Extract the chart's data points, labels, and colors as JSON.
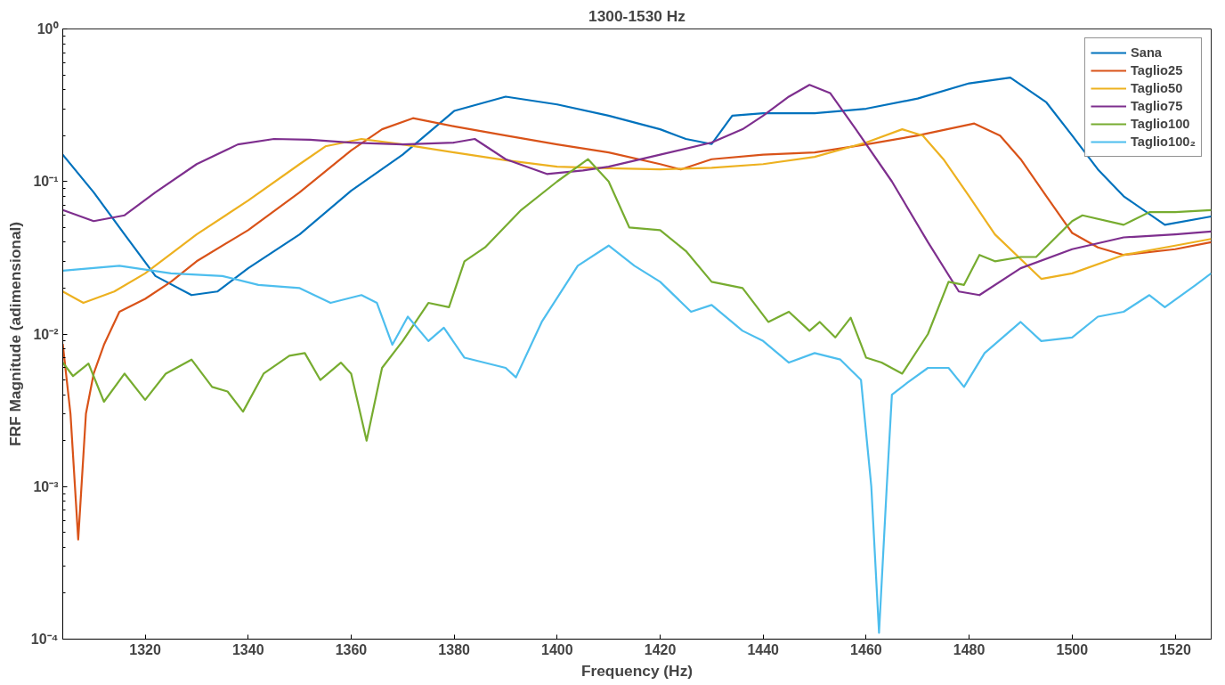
{
  "chart_data": {
    "type": "line",
    "title": "1300-1530 Hz",
    "xlabel": "Frequency (Hz)",
    "ylabel": "FRF Magnitude (adimensional)",
    "log": "y",
    "grid": false,
    "legend": "top right",
    "line_style": "solid",
    "marker": "none",
    "xlim": [
      1304,
      1527
    ],
    "xticks": [
      1320,
      1340,
      1360,
      1380,
      1400,
      1420,
      1440,
      1460,
      1480,
      1500,
      1520
    ],
    "ylim": [
      0.0001,
      1
    ],
    "yticks": [
      {
        "value": 0.0001,
        "label": "10⁻⁴"
      },
      {
        "value": 0.001,
        "label": "10⁻³"
      },
      {
        "value": 0.01,
        "label": "10⁻²"
      },
      {
        "value": 0.1,
        "label": "10⁻¹"
      },
      {
        "value": 1,
        "label": "10⁰"
      }
    ],
    "series": [
      {
        "name": "Sana",
        "color": "#0072bd",
        "x": [
          1304,
          1310,
          1316,
          1322,
          1329,
          1334,
          1340,
          1350,
          1360,
          1370,
          1380,
          1390,
          1400,
          1410,
          1420,
          1425,
          1430,
          1434,
          1440,
          1450,
          1460,
          1470,
          1480,
          1488,
          1495,
          1500,
          1505,
          1510,
          1518,
          1527
        ],
        "values": [
          0.15,
          0.085,
          0.045,
          0.024,
          0.018,
          0.019,
          0.027,
          0.045,
          0.087,
          0.15,
          0.29,
          0.36,
          0.32,
          0.27,
          0.22,
          0.19,
          0.176,
          0.27,
          0.28,
          0.28,
          0.3,
          0.35,
          0.44,
          0.48,
          0.33,
          0.2,
          0.12,
          0.08,
          0.052,
          0.059
        ]
      },
      {
        "name": "Taglio25",
        "color": "#d95319",
        "x": [
          1304,
          1305.5,
          1307,
          1308.5,
          1310,
          1312,
          1315,
          1320,
          1325,
          1330,
          1340,
          1350,
          1360,
          1366,
          1372,
          1380,
          1390,
          1400,
          1410,
          1420,
          1424,
          1430,
          1440,
          1450,
          1460,
          1470,
          1481,
          1486,
          1490,
          1495,
          1500,
          1505,
          1510,
          1520,
          1527
        ],
        "values": [
          0.0086,
          0.003,
          0.00045,
          0.003,
          0.0055,
          0.0085,
          0.014,
          0.017,
          0.022,
          0.03,
          0.048,
          0.085,
          0.16,
          0.22,
          0.26,
          0.23,
          0.2,
          0.175,
          0.155,
          0.13,
          0.12,
          0.14,
          0.15,
          0.155,
          0.175,
          0.2,
          0.24,
          0.2,
          0.14,
          0.08,
          0.046,
          0.037,
          0.033,
          0.036,
          0.04
        ]
      },
      {
        "name": "Taglio50",
        "color": "#edb120",
        "x": [
          1304,
          1308,
          1314,
          1320,
          1330,
          1340,
          1350,
          1355,
          1362,
          1370,
          1380,
          1390,
          1400,
          1410,
          1420,
          1430,
          1440,
          1450,
          1460,
          1467,
          1471,
          1475,
          1480,
          1485,
          1494,
          1500,
          1510,
          1520,
          1527
        ],
        "values": [
          0.019,
          0.016,
          0.019,
          0.025,
          0.045,
          0.075,
          0.13,
          0.17,
          0.19,
          0.175,
          0.155,
          0.138,
          0.125,
          0.122,
          0.12,
          0.123,
          0.13,
          0.145,
          0.18,
          0.22,
          0.2,
          0.14,
          0.08,
          0.045,
          0.023,
          0.025,
          0.033,
          0.038,
          0.042
        ]
      },
      {
        "name": "Taglio75",
        "color": "#7e2f8e",
        "x": [
          1304,
          1310,
          1316,
          1322,
          1330,
          1338,
          1345,
          1352,
          1360,
          1370,
          1380,
          1384,
          1390,
          1398,
          1405,
          1410,
          1420,
          1430,
          1436,
          1440,
          1445,
          1449,
          1453,
          1458,
          1465,
          1472,
          1478,
          1482,
          1490,
          1500,
          1510,
          1520,
          1527
        ],
        "values": [
          0.065,
          0.055,
          0.06,
          0.085,
          0.13,
          0.175,
          0.19,
          0.188,
          0.18,
          0.175,
          0.18,
          0.19,
          0.14,
          0.112,
          0.118,
          0.125,
          0.15,
          0.18,
          0.22,
          0.27,
          0.36,
          0.43,
          0.38,
          0.22,
          0.1,
          0.04,
          0.019,
          0.018,
          0.027,
          0.036,
          0.043,
          0.045,
          0.047
        ]
      },
      {
        "name": "Taglio100",
        "color": "#77ac30",
        "x": [
          1304,
          1306,
          1309,
          1312,
          1316,
          1320,
          1324,
          1329,
          1333,
          1336,
          1339,
          1343,
          1348,
          1351,
          1354,
          1358,
          1360,
          1363,
          1366,
          1370,
          1375,
          1379,
          1382,
          1386,
          1393,
          1400,
          1406,
          1410,
          1414,
          1420,
          1425,
          1430,
          1436,
          1441,
          1445,
          1449,
          1451,
          1454,
          1457,
          1460,
          1463,
          1467,
          1472,
          1476,
          1479,
          1482,
          1485,
          1490,
          1493,
          1500,
          1502,
          1510,
          1515,
          1520,
          1527
        ],
        "values": [
          0.0065,
          0.0053,
          0.0064,
          0.0036,
          0.0055,
          0.0037,
          0.0055,
          0.0068,
          0.0045,
          0.0042,
          0.0031,
          0.0055,
          0.0072,
          0.0075,
          0.005,
          0.0065,
          0.0055,
          0.002,
          0.006,
          0.009,
          0.016,
          0.015,
          0.03,
          0.037,
          0.065,
          0.1,
          0.14,
          0.1,
          0.05,
          0.048,
          0.035,
          0.022,
          0.02,
          0.012,
          0.014,
          0.0105,
          0.012,
          0.0095,
          0.0128,
          0.007,
          0.0065,
          0.0055,
          0.01,
          0.022,
          0.021,
          0.033,
          0.03,
          0.032,
          0.032,
          0.055,
          0.06,
          0.052,
          0.063,
          0.063,
          0.065
        ]
      },
      {
        "name": "Taglio100₂",
        "color": "#4dbeee",
        "x": [
          1304,
          1315,
          1325,
          1335,
          1342,
          1350,
          1356,
          1362,
          1365,
          1368,
          1371,
          1375,
          1378,
          1382,
          1390,
          1392,
          1397,
          1404,
          1410,
          1415,
          1420,
          1426,
          1430,
          1436,
          1440,
          1445,
          1450,
          1455,
          1459,
          1461,
          1462.5,
          1464,
          1465,
          1468,
          1472,
          1476,
          1479,
          1483,
          1490,
          1494,
          1500,
          1505,
          1510,
          1515,
          1518,
          1524,
          1527
        ],
        "values": [
          0.026,
          0.028,
          0.025,
          0.024,
          0.021,
          0.02,
          0.016,
          0.018,
          0.016,
          0.0085,
          0.013,
          0.009,
          0.011,
          0.007,
          0.006,
          0.0052,
          0.012,
          0.028,
          0.038,
          0.028,
          0.022,
          0.014,
          0.0155,
          0.0105,
          0.009,
          0.0065,
          0.0075,
          0.0068,
          0.005,
          0.001,
          0.00011,
          0.001,
          0.004,
          0.0048,
          0.006,
          0.006,
          0.0045,
          0.0075,
          0.012,
          0.009,
          0.0095,
          0.013,
          0.014,
          0.018,
          0.015,
          0.021,
          0.025
        ]
      }
    ]
  }
}
